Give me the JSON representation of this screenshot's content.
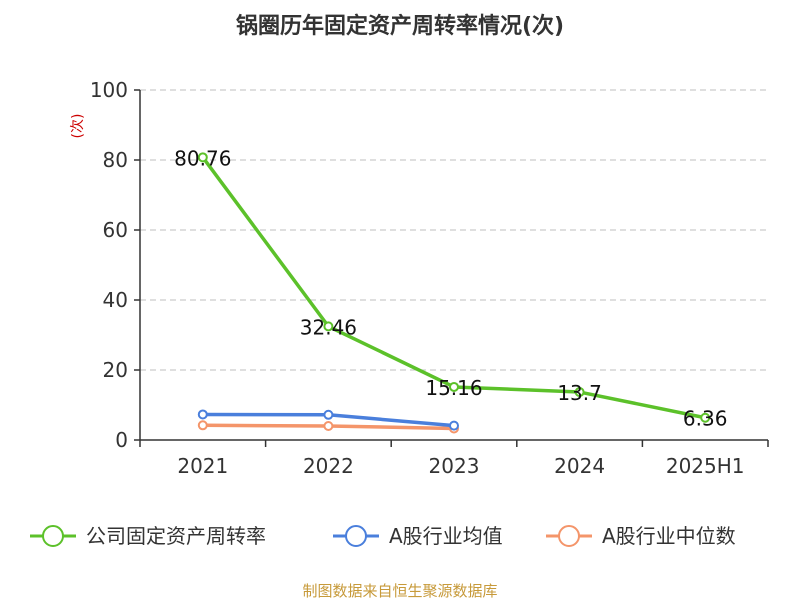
{
  "chart_data": {
    "type": "line",
    "title": "锅圈历年固定资产周转率情况(次)",
    "ylabel": "(次)",
    "xlabel": "",
    "categories": [
      "2021",
      "2022",
      "2023",
      "2024",
      "2025H1"
    ],
    "ylim": [
      0,
      100
    ],
    "yticks": [
      0,
      20,
      40,
      60,
      80,
      100
    ],
    "grid": "horizontal-dashed",
    "legend": "bottom",
    "series": [
      {
        "name": "公司固定资产周转率",
        "color": "#5cc12a",
        "values": [
          80.76,
          32.46,
          15.16,
          13.7,
          6.36
        ],
        "labels": [
          "80.76",
          "32.46",
          "15.16",
          "13.7",
          "6.36"
        ]
      },
      {
        "name": "A股行业均值",
        "color": "#4a7fdc",
        "values": [
          7.3,
          7.2,
          4.1,
          null,
          null
        ]
      },
      {
        "name": "A股行业中位数",
        "color": "#f4956a",
        "values": [
          4.2,
          4.0,
          3.3,
          null,
          null
        ]
      }
    ]
  },
  "source": "制图数据来自恒生聚源数据库"
}
